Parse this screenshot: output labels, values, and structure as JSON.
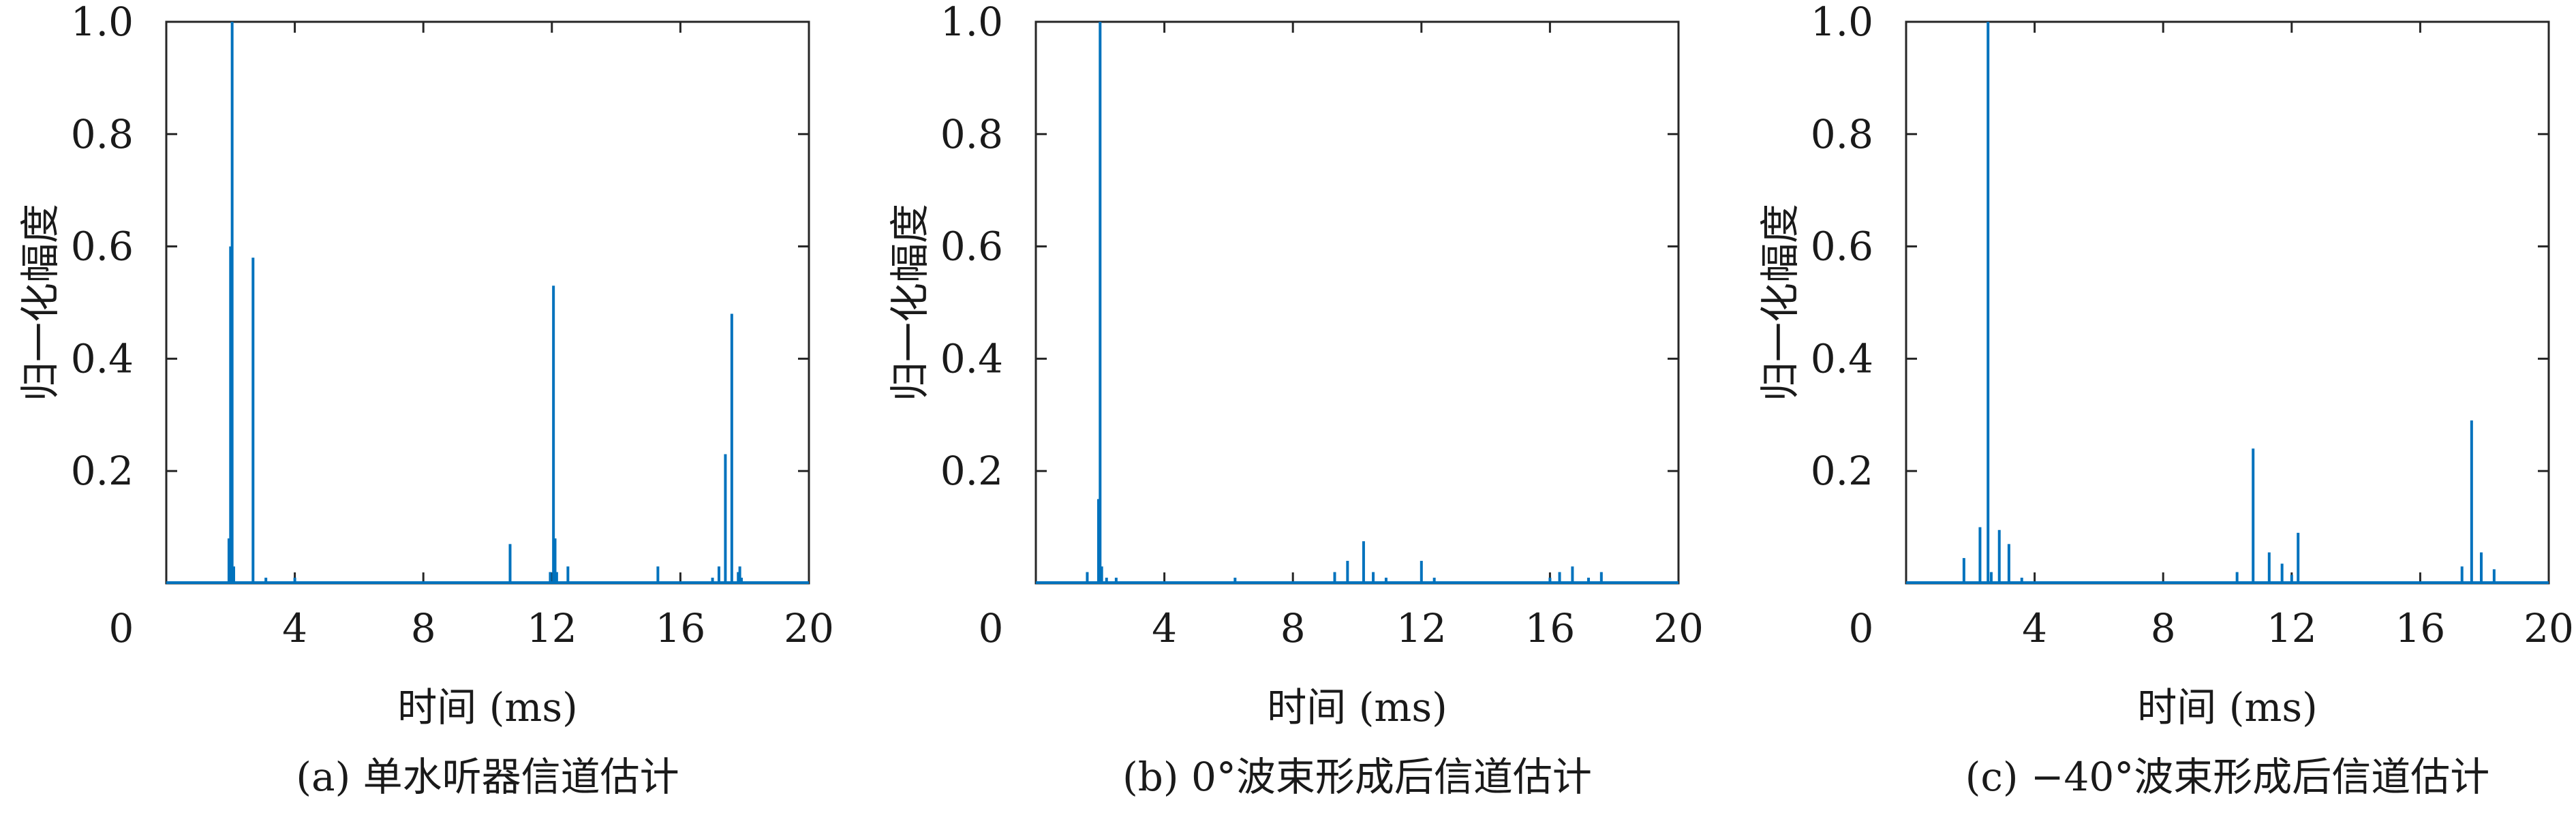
{
  "figure": {
    "panels": [
      {
        "caption": "(a) 单水听器信道估计"
      },
      {
        "caption": "(b) 0°波束形成后信道估计"
      },
      {
        "caption": "(c) −40°波束形成后信道估计"
      }
    ]
  },
  "chart_data": [
    {
      "type": "bar",
      "title": "",
      "caption": "(a) 单水听器信道估计",
      "xlabel": "时间 (ms)",
      "ylabel": "归一化幅度",
      "xlim": [
        0,
        20
      ],
      "ylim": [
        0,
        1.0
      ],
      "xticks": [
        "0",
        "4",
        "8",
        "12",
        "16",
        "20"
      ],
      "yticks": [
        "0.2",
        "0.4",
        "0.6",
        "0.8",
        "1.0"
      ],
      "color": "#0072bd",
      "x": [
        1.95,
        2.0,
        2.05,
        2.1,
        2.7,
        3.1,
        4.0,
        10.7,
        11.95,
        12.05,
        12.1,
        12.15,
        12.5,
        15.3,
        17.0,
        17.2,
        17.4,
        17.6,
        17.8,
        17.85,
        17.9
      ],
      "values": [
        0.08,
        0.6,
        1.0,
        0.03,
        0.58,
        0.01,
        0.01,
        0.07,
        0.02,
        0.53,
        0.08,
        0.02,
        0.03,
        0.03,
        0.01,
        0.03,
        0.23,
        0.48,
        0.02,
        0.03,
        0.01
      ]
    },
    {
      "type": "bar",
      "title": "",
      "caption": "(b) 0°波束形成后信道估计",
      "xlabel": "时间 (ms)",
      "ylabel": "归一化幅度",
      "xlim": [
        0,
        20
      ],
      "ylim": [
        0,
        1.0
      ],
      "xticks": [
        "0",
        "4",
        "8",
        "12",
        "16",
        "20"
      ],
      "yticks": [
        "0.2",
        "0.4",
        "0.6",
        "0.8",
        "1.0"
      ],
      "color": "#0072bd",
      "x": [
        1.6,
        1.95,
        2.0,
        2.05,
        2.2,
        2.5,
        6.2,
        9.3,
        9.7,
        10.2,
        10.5,
        10.9,
        12.0,
        12.4,
        16.0,
        16.3,
        16.7,
        17.2,
        17.6
      ],
      "values": [
        0.02,
        0.15,
        1.0,
        0.03,
        0.01,
        0.01,
        0.01,
        0.02,
        0.04,
        0.075,
        0.02,
        0.01,
        0.04,
        0.01,
        0.01,
        0.02,
        0.03,
        0.01,
        0.02
      ]
    },
    {
      "type": "bar",
      "title": "",
      "caption": "(c) −40°波束形成后信道估计",
      "xlabel": "时间 (ms)",
      "ylabel": "归一化幅度",
      "xlim": [
        0,
        20
      ],
      "ylim": [
        0,
        1.0
      ],
      "xticks": [
        "0",
        "4",
        "8",
        "12",
        "16",
        "20"
      ],
      "yticks": [
        "0.2",
        "0.4",
        "0.6",
        "0.8",
        "1.0"
      ],
      "color": "#0072bd",
      "x": [
        1.8,
        2.3,
        2.55,
        2.65,
        2.9,
        3.2,
        3.6,
        10.3,
        10.8,
        11.3,
        11.7,
        12.0,
        12.2,
        17.3,
        17.6,
        17.9,
        18.3
      ],
      "values": [
        0.045,
        0.1,
        1.0,
        0.02,
        0.095,
        0.07,
        0.01,
        0.02,
        0.24,
        0.055,
        0.035,
        0.015,
        0.09,
        0.03,
        0.29,
        0.055,
        0.025
      ]
    }
  ]
}
